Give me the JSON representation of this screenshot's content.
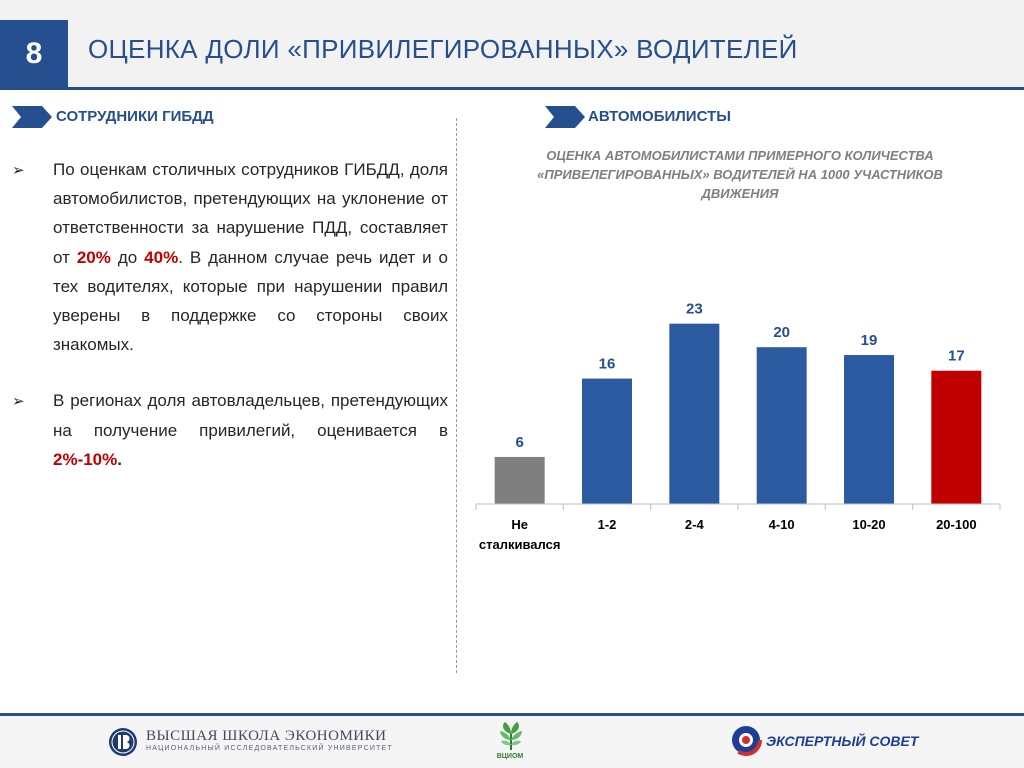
{
  "header": {
    "slide_number": "8",
    "title": "ОЦЕНКА ДОЛИ «ПРИВИЛЕГИРОВАННЫХ» ВОДИТЕЛЕЙ"
  },
  "left": {
    "tag": "СОТРУДНИКИ ГИБДД",
    "bullet1": {
      "part1": "По оценкам столичных сотрудников ГИБДД, доля автомобилистов, претендующих на уклонение от ответственности за нарушение ПДД, составляет от ",
      "hl1": "20%",
      "part2": " до ",
      "hl2": "40%",
      "part3": ". В данном случае речь идет и о тех водителях, которые при нарушении правил уверены в поддержке со стороны своих знакомых."
    },
    "bullet2": {
      "part1": "В регионах доля автовладельцев, претендующих на получение привилегий, оценивается в ",
      "hl1": "2%-10%",
      "part2": "."
    }
  },
  "right": {
    "tag": "АВТОМОБИЛИСТЫ",
    "chart_title": "ОЦЕНКА АВТОМОБИЛИСТАМИ ПРИМЕРНОГО КОЛИЧЕСТВА «ПРИВЕЛЕГИРОВАННЫХ» ВОДИТЕЛЕЙ НА 1000 УЧАСТНИКОВ ДВИЖЕНИЯ"
  },
  "chart_data": {
    "type": "bar",
    "title": "ОЦЕНКА АВТОМОБИЛИСТАМИ ПРИМЕРНОГО КОЛИЧЕСТВА «ПРИВЕЛЕГИРОВАННЫХ» ВОДИТЕЛЕЙ НА 1000 УЧАСТНИКОВ ДВИЖЕНИЯ",
    "categories": [
      [
        "Не",
        "сталкивался"
      ],
      [
        "1-2"
      ],
      [
        "2-4"
      ],
      [
        "4-10"
      ],
      [
        "10-20"
      ],
      [
        "20-100"
      ]
    ],
    "values": [
      6,
      16,
      23,
      20,
      19,
      17
    ],
    "bar_colors": [
      "#7f7f7f",
      "#2c5aa0",
      "#2c5aa0",
      "#2c5aa0",
      "#2c5aa0",
      "#c00000"
    ],
    "ylim": [
      0,
      25
    ],
    "grid": false,
    "data_labels": true
  },
  "footer": {
    "hse_name": "ВЫСШАЯ ШКОЛА ЭКОНОМИКИ",
    "hse_sub": "НАЦИОНАЛЬНЫЙ ИССЛЕДОВАТЕЛЬСКИЙ УНИВЕРСИТЕТ",
    "vciom": "ВЦИОМ",
    "expert_council": "ЭКСПЕРТНЫЙ СОВЕТ"
  },
  "colors": {
    "accent": "#254f8f",
    "highlight": "#c00000",
    "bar_blue": "#2c5aa0",
    "bar_gray": "#7f7f7f"
  }
}
